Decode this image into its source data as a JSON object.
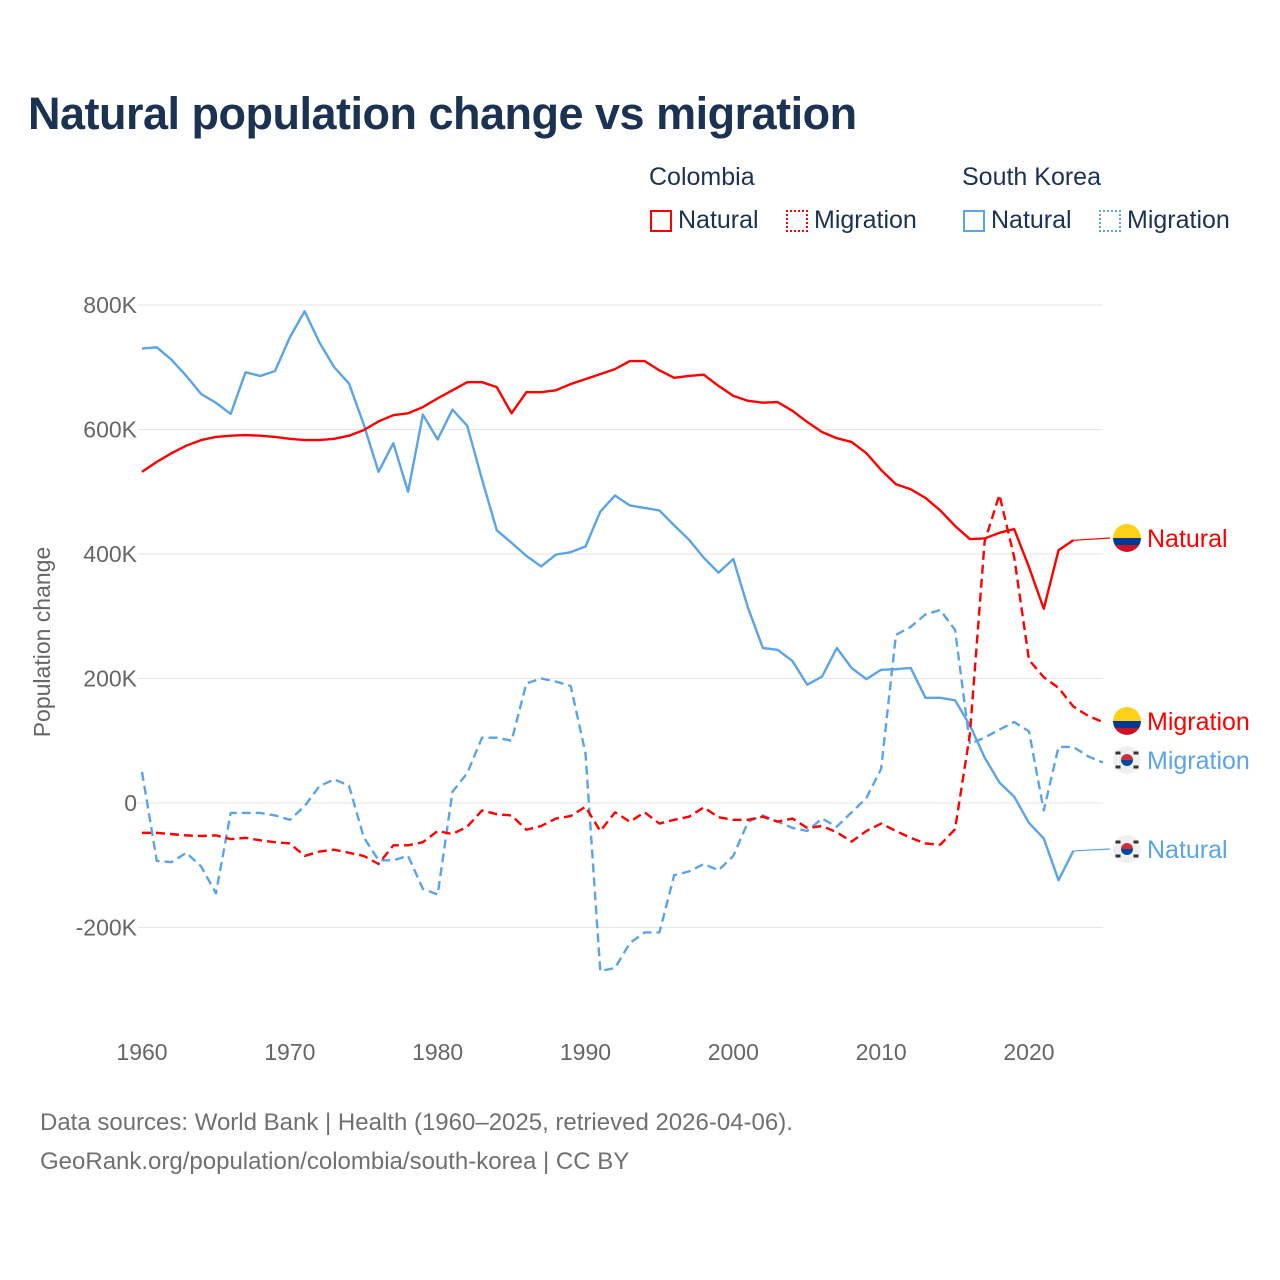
{
  "title": "Natural population change vs migration",
  "legend": {
    "groups": [
      {
        "name": "Colombia",
        "items": [
          "Natural",
          "Migration"
        ],
        "color": "#ff0000"
      },
      {
        "name": "South Korea",
        "items": [
          "Natural",
          "Migration"
        ],
        "color": "#5ba4e6"
      }
    ]
  },
  "footer": {
    "line1": "Data sources: World Bank | Health (1960–2025, retrieved 2026-04-06).",
    "line2": "GeoRank.org/population/colombia/south-korea | CC BY"
  },
  "end_labels": [
    {
      "series": 0,
      "text": "Natural",
      "flag": "colombia-flag-icon"
    },
    {
      "series": 1,
      "text": "Migration",
      "flag": "colombia-flag-icon"
    },
    {
      "series": 3,
      "text": "Migration",
      "flag": "south-korea-flag-icon"
    },
    {
      "series": 2,
      "text": "Natural",
      "flag": "south-korea-flag-icon"
    }
  ],
  "chart_data": {
    "type": "line",
    "title": "Natural population change vs migration",
    "xlabel": "",
    "ylabel": "Population change",
    "xlim": [
      1960,
      2025
    ],
    "ylim": [
      -300000,
      800000
    ],
    "xticks": [
      1960,
      1970,
      1980,
      1990,
      2000,
      2010,
      2020
    ],
    "xtick_labels": [
      "1960",
      "1970",
      "1980",
      "1990",
      "2000",
      "2010",
      "2020"
    ],
    "yticks": [
      -200000,
      0,
      200000,
      400000,
      600000,
      800000
    ],
    "ytick_labels": [
      "-200K",
      "0",
      "200K",
      "400K",
      "600K",
      "800K"
    ],
    "grid": true,
    "legend_position": "top-right",
    "series": [
      {
        "name": "Colombia Natural",
        "country": "Colombia",
        "kind": "Natural",
        "color": "#ff0000",
        "dashed": false,
        "start": 1960,
        "values_k": [
          532,
          548,
          562,
          574,
          583,
          588,
          590,
          591,
          590,
          588,
          585,
          583,
          583,
          585,
          590,
          599,
          613,
          623,
          626,
          636,
          650,
          663,
          676,
          676,
          668,
          626,
          660,
          660,
          663,
          673,
          681,
          689,
          697,
          710,
          710,
          695,
          683,
          686,
          688,
          670,
          654,
          646,
          643,
          644,
          630,
          612,
          596,
          586,
          580,
          562,
          535,
          512,
          504,
          490,
          470,
          445,
          424,
          425,
          434,
          440,
          379,
          312,
          406,
          422
        ]
      },
      {
        "name": "Colombia Migration",
        "country": "Colombia",
        "kind": "Migration",
        "color": "#ff0000",
        "dashed": true,
        "start": 1960,
        "values_k": [
          -48,
          -48,
          -50,
          -52,
          -53,
          -52,
          -58,
          -56,
          -60,
          -63,
          -65,
          -85,
          -78,
          -75,
          -80,
          -85,
          -98,
          -68,
          -68,
          -63,
          -45,
          -50,
          -38,
          -12,
          -18,
          -20,
          -43,
          -37,
          -25,
          -21,
          -6,
          -45,
          -15,
          -30,
          -15,
          -33,
          -27,
          -22,
          -7,
          -23,
          -27,
          -27,
          -22,
          -30,
          -25,
          -40,
          -37,
          -47,
          -62,
          -45,
          -33,
          -45,
          -56,
          -65,
          -67,
          -42,
          110,
          420,
          495,
          395,
          230,
          202,
          185,
          155,
          140,
          130
        ]
      },
      {
        "name": "South Korea Natural",
        "country": "South Korea",
        "kind": "Natural",
        "color": "#5ba4e6",
        "dashed": false,
        "start": 1960,
        "values_k": [
          730,
          732,
          712,
          686,
          657,
          643,
          625,
          692,
          686,
          694,
          748,
          790,
          740,
          700,
          674,
          608,
          532,
          578,
          500,
          624,
          584,
          632,
          606,
          520,
          438,
          418,
          397,
          380,
          399,
          403,
          412,
          468,
          494,
          478,
          474,
          470,
          446,
          423,
          394,
          370,
          392,
          313,
          249,
          246,
          228,
          190,
          203,
          249,
          217,
          199,
          214,
          215,
          217,
          169,
          169,
          165,
          125,
          73,
          33,
          10,
          -32,
          -57,
          -124,
          -77
        ]
      },
      {
        "name": "South Korea Migration",
        "country": "South Korea",
        "kind": "Migration",
        "color": "#5ba4e6",
        "dashed": true,
        "start": 1960,
        "values_k": [
          50,
          -93,
          -95,
          -80,
          -102,
          -145,
          -16,
          -16,
          -16,
          -20,
          -27,
          -5,
          27,
          38,
          28,
          -55,
          -92,
          -92,
          -85,
          -138,
          -147,
          18,
          48,
          105,
          105,
          100,
          192,
          200,
          195,
          188,
          80,
          -270,
          -265,
          -225,
          -208,
          -208,
          -116,
          -110,
          -98,
          -108,
          -85,
          -30,
          -20,
          -30,
          -40,
          -45,
          -25,
          -38,
          -15,
          8,
          55,
          270,
          283,
          303,
          310,
          278,
          95,
          105,
          118,
          130,
          115,
          -12,
          90,
          90,
          75,
          65
        ]
      }
    ]
  }
}
